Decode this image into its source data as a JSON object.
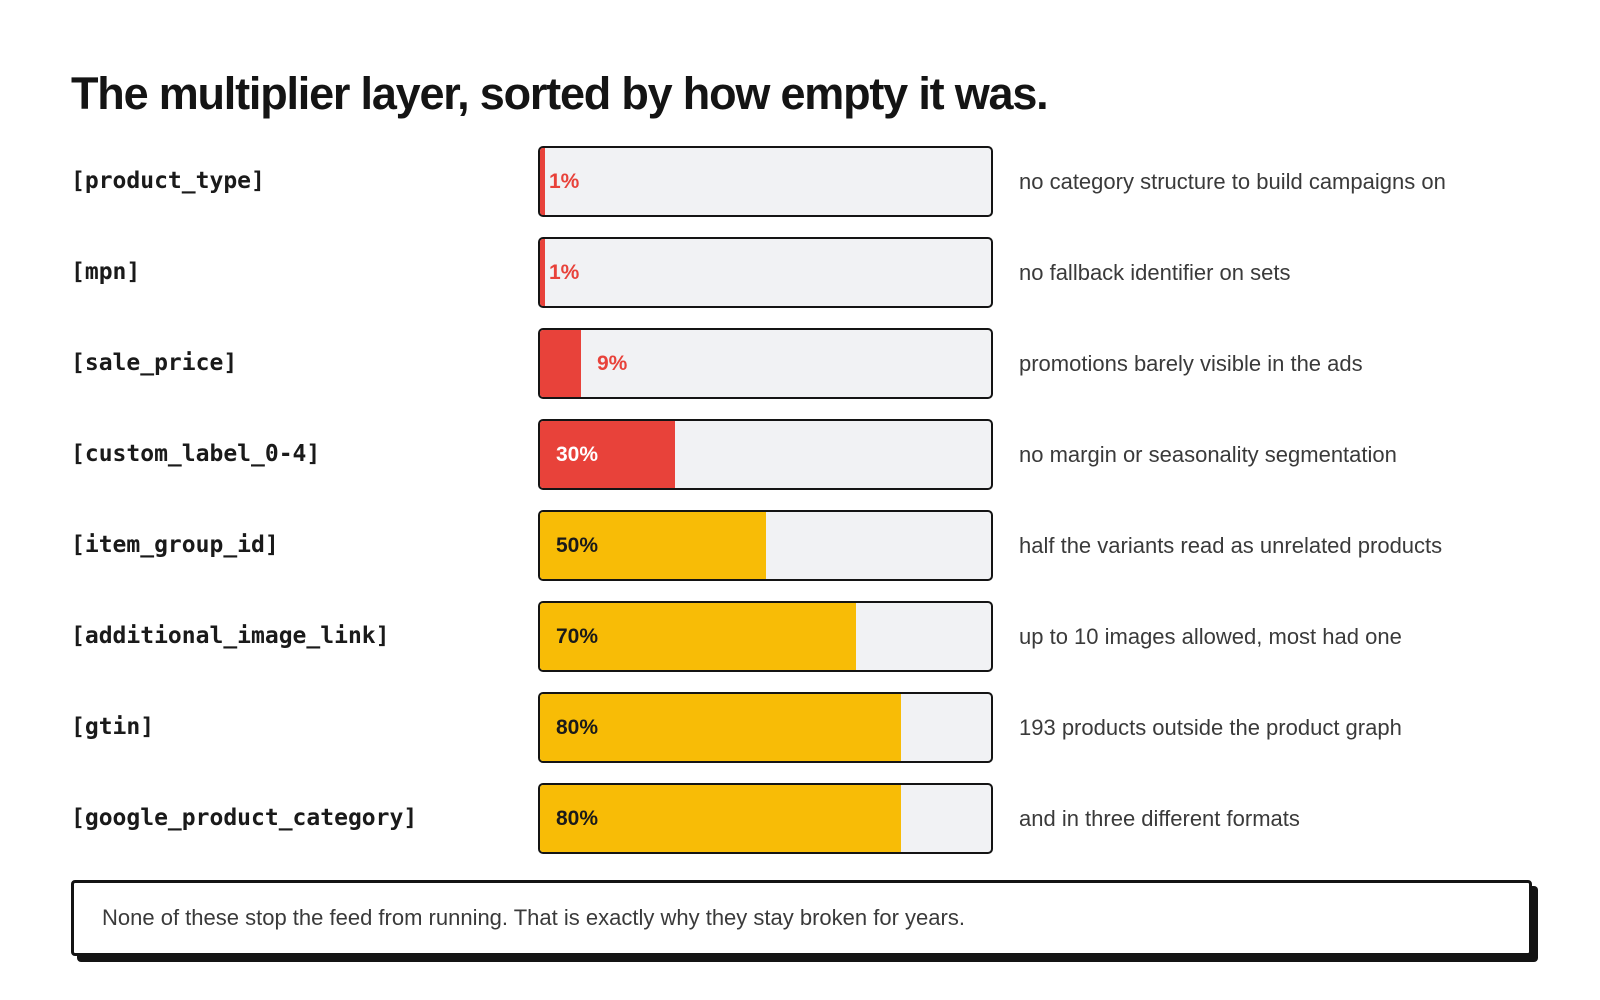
{
  "title": "The multiplier layer, sorted by how empty it was.",
  "chart_data": {
    "type": "bar",
    "orientation": "horizontal",
    "xlim": [
      0,
      100
    ],
    "unit": "%",
    "categories": [
      "[product_type]",
      "[mpn]",
      "[sale_price]",
      "[custom_label_0-4]",
      "[item_group_id]",
      "[additional_image_link]",
      "[gtin]",
      "[google_product_category]"
    ],
    "values": [
      1,
      1,
      9,
      30,
      50,
      70,
      80,
      80
    ],
    "value_labels": [
      "1%",
      "1%",
      "9%",
      "30%",
      "50%",
      "70%",
      "80%",
      "80%"
    ],
    "annotations": [
      "no category structure to build campaigns on",
      "no fallback identifier on sets",
      "promotions barely visible in the ads",
      "no margin or seasonality segmentation",
      "half the variants read as unrelated products",
      "up to 10 images allowed, most had one",
      "193 products outside the product graph",
      "and in three different formats"
    ],
    "bar_colors": [
      "#e8423a",
      "#e8423a",
      "#e8423a",
      "#e8423a",
      "#f8bc06",
      "#f8bc06",
      "#f8bc06",
      "#f8bc06"
    ],
    "label_colors": [
      "#e8423a",
      "#e8423a",
      "#e8423a",
      "#ffffff",
      "#1a1a1a",
      "#1a1a1a",
      "#1a1a1a",
      "#1a1a1a"
    ],
    "track_color": "#f1f2f4"
  },
  "callout": {
    "text": "None of these stop the feed from running. That is exactly why they stay broken for years."
  }
}
